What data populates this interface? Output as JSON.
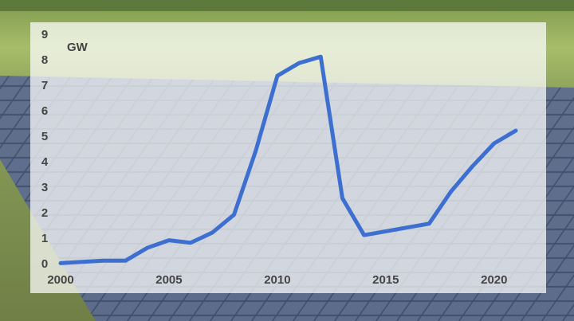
{
  "chart_data": {
    "type": "line",
    "y_label": "GW",
    "x": [
      2000,
      2001,
      2002,
      2003,
      2004,
      2005,
      2006,
      2007,
      2008,
      2009,
      2010,
      2011,
      2012,
      2013,
      2014,
      2015,
      2016,
      2017,
      2018,
      2019,
      2020,
      2021
    ],
    "series": [
      {
        "color": "#3d6fd0",
        "values": [
          0.05,
          0.1,
          0.15,
          0.15,
          0.65,
          0.95,
          0.85,
          1.25,
          1.95,
          4.45,
          7.4,
          7.9,
          8.15,
          2.6,
          1.15,
          1.3,
          1.45,
          1.6,
          2.85,
          3.85,
          4.75,
          5.25
        ]
      }
    ],
    "xlim": [
      2000,
      2021
    ],
    "xticks": [
      2000,
      2005,
      2010,
      2015,
      2020
    ],
    "ylim": [
      0,
      9
    ],
    "yticks": [
      0,
      1,
      2,
      3,
      4,
      5,
      6,
      7,
      8,
      9
    ],
    "grid": false
  }
}
